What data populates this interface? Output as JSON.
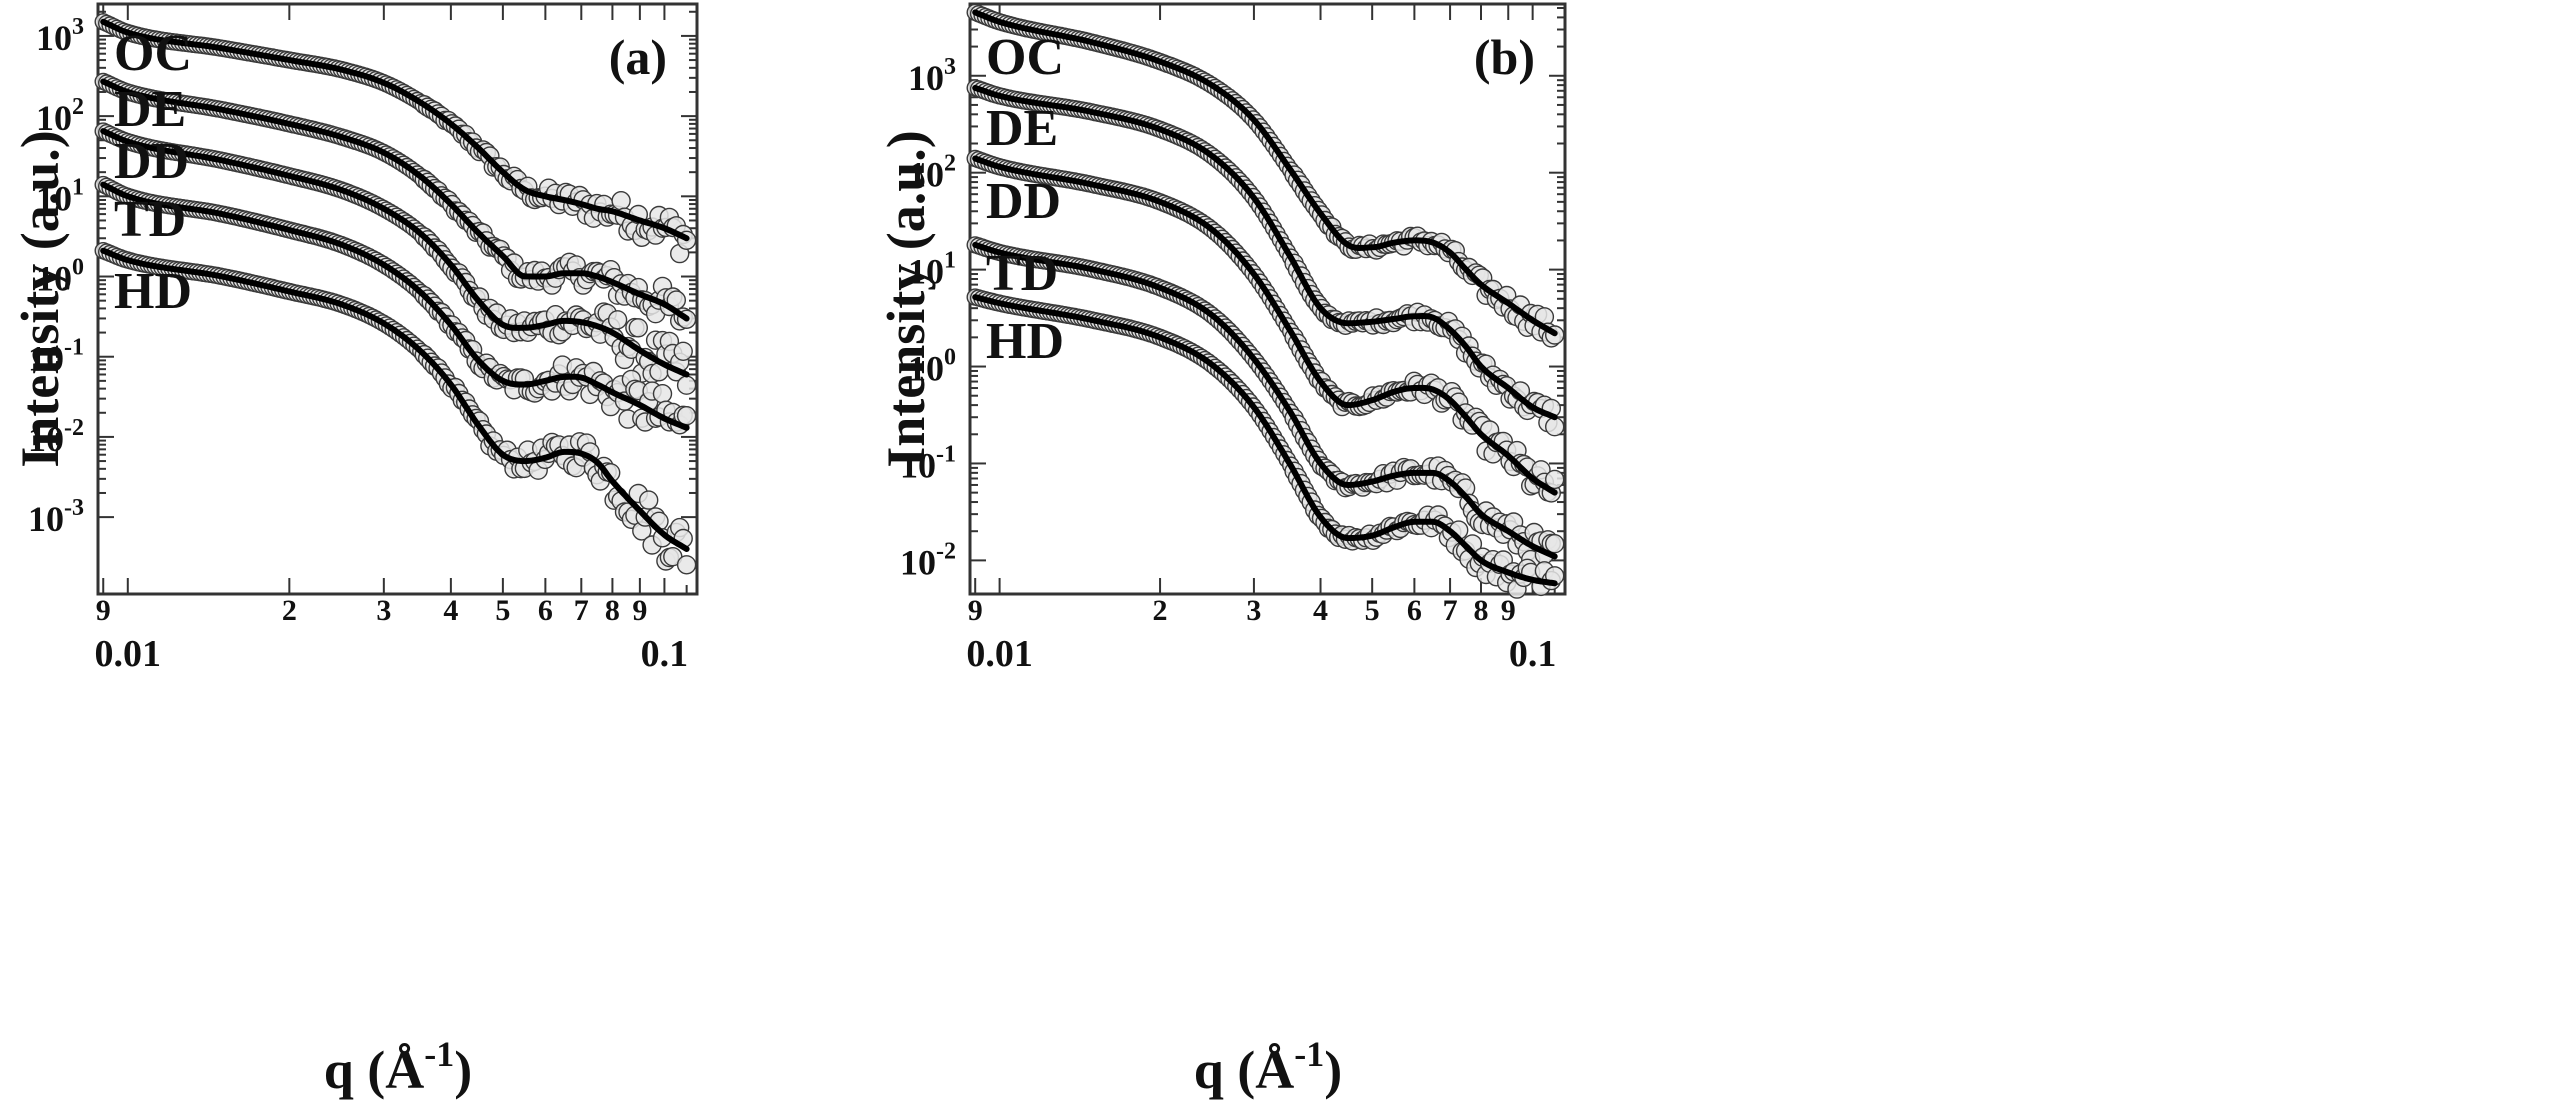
{
  "chart_data": [
    {
      "type": "scatter",
      "panel_label": "(a)",
      "xlabel": "q (Å",
      "xlabel_sup": "-1",
      "xlabel_close": ")",
      "ylabel": "Intensity (a.u.)",
      "xscale": "log",
      "yscale": "log",
      "xlim": [
        0.0088,
        0.115
      ],
      "ylim": [
        0.00011,
        2500
      ],
      "x_ticks": [
        {
          "value": 0.009,
          "label": "9"
        },
        {
          "value": 0.01,
          "label": "0.01",
          "below": true
        },
        {
          "value": 0.02,
          "label": "2"
        },
        {
          "value": 0.03,
          "label": "3"
        },
        {
          "value": 0.04,
          "label": "4"
        },
        {
          "value": 0.05,
          "label": "5"
        },
        {
          "value": 0.06,
          "label": "6"
        },
        {
          "value": 0.07,
          "label": "7"
        },
        {
          "value": 0.08,
          "label": "8"
        },
        {
          "value": 0.09,
          "label": "9"
        },
        {
          "value": 0.1,
          "label": "0.1",
          "below": true
        }
      ],
      "y_ticks": [
        {
          "value": 1000,
          "base": "10",
          "exp": "3"
        },
        {
          "value": 100,
          "base": "10",
          "exp": "2"
        },
        {
          "value": 10,
          "base": "10",
          "exp": "1"
        },
        {
          "value": 1,
          "base": "10",
          "exp": "0"
        },
        {
          "value": 0.1,
          "base": "10",
          "exp": "-1"
        },
        {
          "value": 0.01,
          "base": "10",
          "exp": "-2"
        },
        {
          "value": 0.001,
          "base": "10",
          "exp": "-3"
        }
      ],
      "series": [
        {
          "name": "OC",
          "x": [
            0.009,
            0.01,
            0.015,
            0.02,
            0.025,
            0.03,
            0.035,
            0.04,
            0.045,
            0.05,
            0.055,
            0.06,
            0.065,
            0.07,
            0.075,
            0.08,
            0.09,
            0.1,
            0.11
          ],
          "y": [
            1500,
            1100,
            700,
            500,
            380,
            260,
            150,
            80,
            40,
            20,
            12,
            10,
            9,
            8,
            7,
            6.5,
            5,
            4,
            3
          ]
        },
        {
          "name": "DE",
          "x": [
            0.009,
            0.01,
            0.015,
            0.02,
            0.025,
            0.03,
            0.035,
            0.04,
            0.045,
            0.05,
            0.055,
            0.06,
            0.065,
            0.07,
            0.075,
            0.08,
            0.09,
            0.1,
            0.11
          ],
          "y": [
            270,
            200,
            120,
            80,
            55,
            35,
            18,
            8,
            3.5,
            1.8,
            1.0,
            1.0,
            1.1,
            1.1,
            1.0,
            0.85,
            0.6,
            0.45,
            0.3
          ]
        },
        {
          "name": "DD",
          "x": [
            0.009,
            0.01,
            0.015,
            0.02,
            0.025,
            0.03,
            0.035,
            0.04,
            0.045,
            0.05,
            0.055,
            0.06,
            0.065,
            0.07,
            0.075,
            0.08,
            0.09,
            0.1,
            0.11
          ],
          "y": [
            65,
            48,
            28,
            18,
            12,
            7,
            3.5,
            1.4,
            0.5,
            0.25,
            0.23,
            0.25,
            0.28,
            0.27,
            0.24,
            0.2,
            0.12,
            0.08,
            0.06
          ]
        },
        {
          "name": "TD",
          "x": [
            0.009,
            0.01,
            0.015,
            0.02,
            0.025,
            0.03,
            0.035,
            0.04,
            0.045,
            0.05,
            0.055,
            0.06,
            0.065,
            0.07,
            0.075,
            0.08,
            0.09,
            0.1,
            0.11
          ],
          "y": [
            14,
            10,
            6,
            3.8,
            2.5,
            1.4,
            0.65,
            0.25,
            0.09,
            0.05,
            0.045,
            0.05,
            0.056,
            0.055,
            0.045,
            0.036,
            0.025,
            0.017,
            0.013
          ]
        },
        {
          "name": "HD",
          "x": [
            0.009,
            0.01,
            0.015,
            0.02,
            0.025,
            0.03,
            0.035,
            0.04,
            0.045,
            0.05,
            0.055,
            0.06,
            0.065,
            0.07,
            0.075,
            0.08,
            0.09,
            0.1,
            0.11
          ],
          "y": [
            2.1,
            1.6,
            1.0,
            0.65,
            0.45,
            0.26,
            0.12,
            0.045,
            0.014,
            0.006,
            0.005,
            0.0055,
            0.0065,
            0.0062,
            0.0048,
            0.0028,
            0.0012,
            0.0006,
            0.0004
          ]
        }
      ]
    },
    {
      "type": "scatter",
      "panel_label": "(b)",
      "xlabel": "q (Å",
      "xlabel_sup": "-1",
      "xlabel_close": ")",
      "ylabel": "Intensity (a.u.)",
      "xscale": "log",
      "yscale": "log",
      "xlim": [
        0.0088,
        0.115
      ],
      "ylim": [
        0.0045,
        5500
      ],
      "x_ticks": [
        {
          "value": 0.009,
          "label": "9"
        },
        {
          "value": 0.01,
          "label": "0.01",
          "below": true
        },
        {
          "value": 0.02,
          "label": "2"
        },
        {
          "value": 0.03,
          "label": "3"
        },
        {
          "value": 0.04,
          "label": "4"
        },
        {
          "value": 0.05,
          "label": "5"
        },
        {
          "value": 0.06,
          "label": "6"
        },
        {
          "value": 0.07,
          "label": "7"
        },
        {
          "value": 0.08,
          "label": "8"
        },
        {
          "value": 0.09,
          "label": "9"
        },
        {
          "value": 0.1,
          "label": "0.1",
          "below": true
        }
      ],
      "y_ticks": [
        {
          "value": 1000,
          "base": "10",
          "exp": "3"
        },
        {
          "value": 100,
          "base": "10",
          "exp": "2"
        },
        {
          "value": 10,
          "base": "10",
          "exp": "1"
        },
        {
          "value": 1,
          "base": "10",
          "exp": "0"
        },
        {
          "value": 0.1,
          "base": "10",
          "exp": "-1"
        },
        {
          "value": 0.01,
          "base": "10",
          "exp": "-2"
        }
      ],
      "series": [
        {
          "name": "OC",
          "x": [
            0.009,
            0.01,
            0.015,
            0.02,
            0.025,
            0.03,
            0.035,
            0.04,
            0.045,
            0.05,
            0.055,
            0.06,
            0.065,
            0.07,
            0.075,
            0.08,
            0.09,
            0.1,
            0.11
          ],
          "y": [
            4500,
            3600,
            2200,
            1400,
            800,
            350,
            110,
            38,
            18,
            17,
            19,
            20,
            19,
            15,
            10,
            7,
            4.5,
            3,
            2.2
          ]
        },
        {
          "name": "DE",
          "x": [
            0.009,
            0.01,
            0.015,
            0.02,
            0.025,
            0.03,
            0.035,
            0.04,
            0.045,
            0.05,
            0.055,
            0.06,
            0.065,
            0.07,
            0.075,
            0.08,
            0.09,
            0.1,
            0.11
          ],
          "y": [
            750,
            620,
            420,
            280,
            150,
            55,
            14,
            4,
            2.8,
            2.9,
            3.1,
            3.3,
            3.2,
            2.4,
            1.6,
            1.0,
            0.6,
            0.38,
            0.3
          ]
        },
        {
          "name": "DD",
          "x": [
            0.009,
            0.01,
            0.015,
            0.02,
            0.025,
            0.03,
            0.035,
            0.04,
            0.045,
            0.05,
            0.055,
            0.06,
            0.065,
            0.07,
            0.075,
            0.08,
            0.09,
            0.1,
            0.11
          ],
          "y": [
            140,
            115,
            75,
            50,
            26,
            9,
            2.4,
            0.7,
            0.4,
            0.45,
            0.55,
            0.6,
            0.58,
            0.45,
            0.3,
            0.2,
            0.12,
            0.07,
            0.05
          ]
        },
        {
          "name": "TD",
          "x": [
            0.009,
            0.01,
            0.015,
            0.02,
            0.025,
            0.03,
            0.035,
            0.04,
            0.045,
            0.05,
            0.055,
            0.06,
            0.065,
            0.07,
            0.075,
            0.08,
            0.09,
            0.1,
            0.11
          ],
          "y": [
            18,
            15,
            10,
            6.5,
            3.4,
            1.2,
            0.35,
            0.1,
            0.06,
            0.065,
            0.075,
            0.08,
            0.08,
            0.065,
            0.045,
            0.03,
            0.02,
            0.014,
            0.011
          ]
        },
        {
          "name": "HD",
          "x": [
            0.009,
            0.01,
            0.015,
            0.02,
            0.025,
            0.03,
            0.035,
            0.04,
            0.045,
            0.05,
            0.055,
            0.06,
            0.065,
            0.07,
            0.075,
            0.08,
            0.09,
            0.1,
            0.11
          ],
          "y": [
            5.2,
            4.5,
            3.0,
            2.0,
            1.05,
            0.38,
            0.1,
            0.028,
            0.017,
            0.018,
            0.022,
            0.025,
            0.025,
            0.02,
            0.014,
            0.01,
            0.0075,
            0.0063,
            0.0058
          ]
        }
      ]
    }
  ]
}
